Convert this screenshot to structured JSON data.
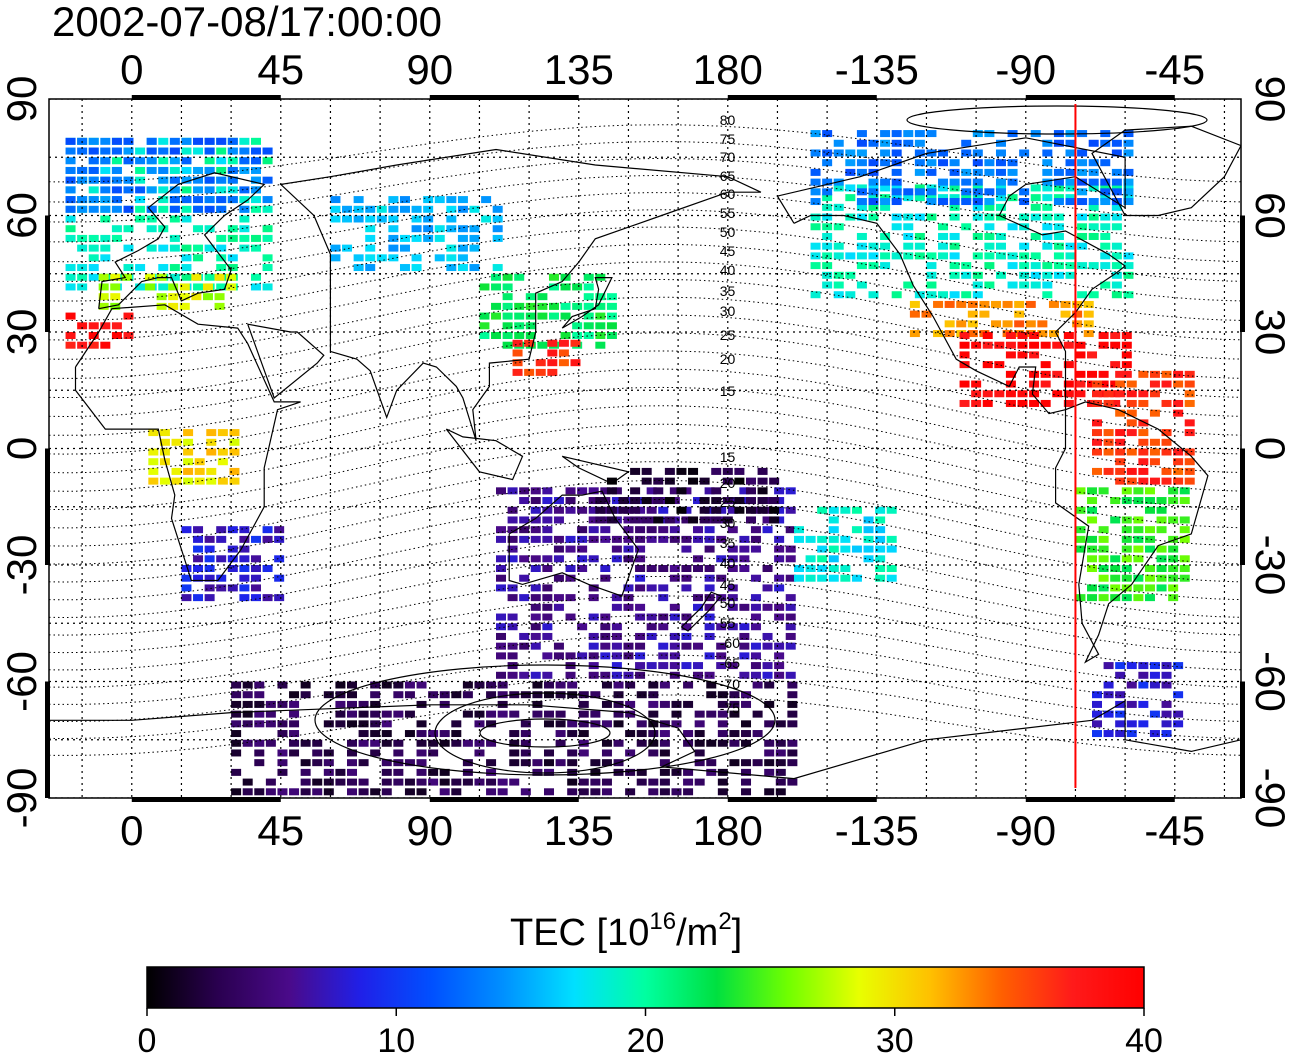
{
  "title": "2002-07-08/17:00:00",
  "map": {
    "top_lon_ticks": [
      "0",
      "45",
      "90",
      "135",
      "180",
      "-135",
      "-90",
      "-45"
    ],
    "bottom_lon_ticks": [
      "0",
      "45",
      "90",
      "135",
      "180",
      "-135",
      "-90",
      "-45"
    ],
    "left_lat_ticks": [
      "90",
      "60",
      "30",
      "0",
      "-30",
      "-60",
      "-90"
    ],
    "right_lat_ticks": [
      "90",
      "60",
      "30",
      "0",
      "-30",
      "-60",
      "-90"
    ],
    "contour_labels_north": [
      "80",
      "75",
      "70",
      "65",
      "60",
      "55",
      "50",
      "45",
      "40",
      "35",
      "30",
      "25",
      "20",
      "15"
    ],
    "contour_labels_south": [
      "15",
      "20",
      "25",
      "30",
      "35",
      "40",
      "45",
      "50",
      "55",
      "-60",
      "-65",
      "-70",
      "-75"
    ],
    "marker_lon": -75,
    "marker_color": "#ff0000",
    "lon_range": [
      -25,
      335
    ],
    "lat_range": [
      -90,
      90
    ],
    "data_blocks": [
      {
        "lon0": -20,
        "lon1": 40,
        "lat0": 42,
        "lat1": 80,
        "value": 19
      },
      {
        "lon0": -20,
        "lon1": 40,
        "lat0": 62,
        "lat1": 80,
        "value": 13
      },
      {
        "lon0": -10,
        "lon1": 35,
        "lat0": 35,
        "lat1": 45,
        "value": 28
      },
      {
        "lon0": -20,
        "lon1": 0,
        "lat0": 25,
        "lat1": 35,
        "value": 38
      },
      {
        "lon0": 105,
        "lon1": 145,
        "lat0": 25,
        "lat1": 45,
        "value": 22
      },
      {
        "lon0": 115,
        "lon1": 135,
        "lat0": 20,
        "lat1": 28,
        "value": 36
      },
      {
        "lon0": 205,
        "lon1": 300,
        "lat0": 38,
        "lat1": 68,
        "value": 19
      },
      {
        "lon0": 205,
        "lon1": 300,
        "lat0": 62,
        "lat1": 82,
        "value": 13
      },
      {
        "lon0": 235,
        "lon1": 290,
        "lat0": 28,
        "lat1": 38,
        "value": 33
      },
      {
        "lon0": 250,
        "lon1": 300,
        "lat0": 12,
        "lat1": 30,
        "value": 39
      },
      {
        "lon0": 290,
        "lon1": 320,
        "lat0": -10,
        "lat1": 20,
        "value": 36
      },
      {
        "lon0": 285,
        "lon1": 320,
        "lat0": -40,
        "lat1": -10,
        "value": 24
      },
      {
        "lon0": 110,
        "lon1": 200,
        "lat0": -60,
        "lat1": -10,
        "value": 6
      },
      {
        "lon0": 140,
        "lon1": 195,
        "lat0": -20,
        "lat1": -5,
        "value": 2
      },
      {
        "lon0": 30,
        "lon1": 200,
        "lat0": -90,
        "lat1": -60,
        "value": 3
      },
      {
        "lon0": 15,
        "lon1": 45,
        "lat0": -40,
        "lat1": -20,
        "value": 8
      },
      {
        "lon0": 290,
        "lon1": 315,
        "lat0": -75,
        "lat1": -55,
        "value": 8
      },
      {
        "lon0": 5,
        "lon1": 30,
        "lat0": -10,
        "lat1": 5,
        "value": 30
      },
      {
        "lon0": 60,
        "lon1": 110,
        "lat0": 45,
        "lat1": 65,
        "value": 16
      },
      {
        "lon0": 200,
        "lon1": 230,
        "lat0": -35,
        "lat1": -15,
        "value": 18
      }
    ]
  },
  "colorbar": {
    "label_main": "TEC  [10",
    "label_exp": "16",
    "label_unit": "/m",
    "label_exp2": "2",
    "label_close": "]",
    "ticks": [
      "0",
      "10",
      "20",
      "30",
      "40"
    ],
    "min": 0,
    "max": 40,
    "stops": [
      "#000000",
      "#2a0050",
      "#4a0a8a",
      "#2020e8",
      "#0050ff",
      "#0090ff",
      "#00e0ff",
      "#00ffa0",
      "#00e040",
      "#70ff00",
      "#e8ff00",
      "#ffc000",
      "#ff6000",
      "#ff1a1a",
      "#ff0000"
    ]
  }
}
